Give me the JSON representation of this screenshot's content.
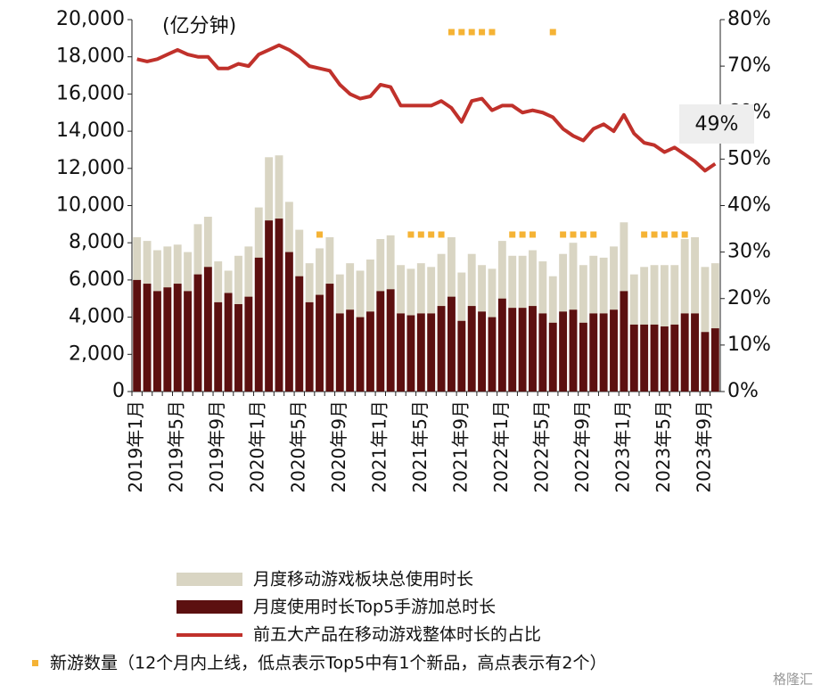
{
  "chart_data": {
    "type": "bar-line",
    "unit_label": "(亿分钟)",
    "categories": [
      "2019年1月",
      null,
      null,
      null,
      "2019年5月",
      null,
      null,
      null,
      "2019年9月",
      null,
      null,
      null,
      "2020年1月",
      null,
      null,
      null,
      "2020年5月",
      null,
      null,
      null,
      "2020年9月",
      null,
      null,
      null,
      "2021年1月",
      null,
      null,
      null,
      "2021年5月",
      null,
      null,
      null,
      "2021年9月",
      null,
      null,
      null,
      "2022年1月",
      null,
      null,
      null,
      "2022年5月",
      null,
      null,
      null,
      "2022年9月",
      null,
      null,
      null,
      "2023年1月",
      null,
      null,
      null,
      "2023年5月",
      null,
      null,
      null,
      "2023年9月",
      null
    ],
    "series": [
      {
        "name": "月度移动游戏板块总使用时长",
        "color": "#d9d5c3",
        "values": [
          8300,
          8100,
          7600,
          7800,
          7900,
          7500,
          9000,
          9400,
          7000,
          6500,
          7300,
          7800,
          9900,
          12600,
          12700,
          10200,
          8700,
          6900,
          7700,
          8300,
          6300,
          6900,
          6500,
          7100,
          8200,
          8400,
          6800,
          6600,
          6900,
          6700,
          7400,
          8300,
          6400,
          7400,
          6800,
          6600,
          8100,
          7300,
          7300,
          7600,
          7000,
          6200,
          7400,
          8000,
          6800,
          7300,
          7200,
          7800,
          9100,
          6300,
          6700,
          6800,
          6800,
          6800,
          8200,
          8300,
          6700,
          6900
        ]
      },
      {
        "name": "月度使用时长Top5手游加总时长",
        "color": "#5c1010",
        "values": [
          6000,
          5800,
          5400,
          5600,
          5800,
          5400,
          6300,
          6700,
          4800,
          5300,
          4700,
          5100,
          7200,
          9200,
          9300,
          7500,
          6200,
          4800,
          5200,
          5800,
          4200,
          4400,
          4000,
          4300,
          5400,
          5500,
          4200,
          4100,
          4200,
          4200,
          4600,
          5100,
          3800,
          4600,
          4300,
          4000,
          5000,
          4500,
          4500,
          4600,
          4200,
          3700,
          4300,
          4400,
          3700,
          4200,
          4200,
          4400,
          5400,
          3600,
          3600,
          3600,
          3500,
          3600,
          4200,
          4200,
          3200,
          3400
        ]
      },
      {
        "name": "前五大产品在移动游戏整体时长的占比",
        "color": "#c0312b",
        "axis": "y2",
        "values": [
          71.5,
          71,
          71.5,
          72.5,
          73.5,
          72.5,
          72,
          72,
          69.5,
          69.5,
          70.5,
          70,
          72.5,
          73.5,
          74.5,
          73.5,
          72,
          70,
          69.5,
          69,
          66,
          64,
          63,
          63.5,
          66,
          65.5,
          61.5,
          61.5,
          61.5,
          61.5,
          62.5,
          61,
          58,
          62.5,
          63,
          60.5,
          61.5,
          61.5,
          60,
          60.5,
          60,
          59,
          56.5,
          55,
          54,
          56.5,
          57.5,
          56,
          59.5,
          55.5,
          53.5,
          53,
          51.5,
          52.5,
          51,
          49.5,
          47.5,
          49
        ]
      }
    ],
    "new_games": {
      "name": "新游数量（12个月内上线，低点表示Top5中有1个新品，高点表示有2个）",
      "color": "#f5b335",
      "values": [
        null,
        null,
        null,
        null,
        null,
        null,
        null,
        null,
        null,
        null,
        null,
        null,
        null,
        null,
        null,
        null,
        null,
        null,
        1,
        null,
        null,
        null,
        null,
        null,
        null,
        null,
        null,
        1,
        1,
        1,
        1,
        2,
        2,
        2,
        2,
        2,
        null,
        1,
        1,
        1,
        null,
        2,
        1,
        1,
        1,
        1,
        null,
        null,
        null,
        null,
        1,
        1,
        1,
        1,
        1,
        null,
        null,
        null
      ]
    },
    "annotation": "49%",
    "ylim": [
      0,
      20000
    ],
    "yticks": [
      0,
      {
        "value": 2000,
        "label": "2,000"
      },
      {
        "value": 4000,
        "label": "4,000"
      },
      {
        "value": 6000,
        "label": "6,000"
      },
      {
        "value": 8000,
        "label": "8,000"
      },
      {
        "value": 10000,
        "label": "10,000"
      },
      {
        "value": 12000,
        "label": "12,000"
      },
      {
        "value": 14000,
        "label": "14,000"
      },
      {
        "value": 16000,
        "label": "16,000"
      },
      {
        "value": 18000,
        "label": "18,000"
      },
      {
        "value": 20000,
        "label": "20,000"
      }
    ],
    "y2lim": [
      0,
      80
    ],
    "y2ticks": [
      {
        "value": 0,
        "label": "0%"
      },
      {
        "value": 10,
        "label": "10%"
      },
      {
        "value": 20,
        "label": "20%"
      },
      {
        "value": 30,
        "label": "30%"
      },
      {
        "value": 40,
        "label": "40%"
      },
      {
        "value": 50,
        "label": "50%"
      },
      {
        "value": 60,
        "label": "60%"
      },
      {
        "value": 70,
        "label": "70%"
      },
      {
        "value": 80,
        "label": "80%"
      }
    ],
    "watermark": "格隆汇"
  }
}
